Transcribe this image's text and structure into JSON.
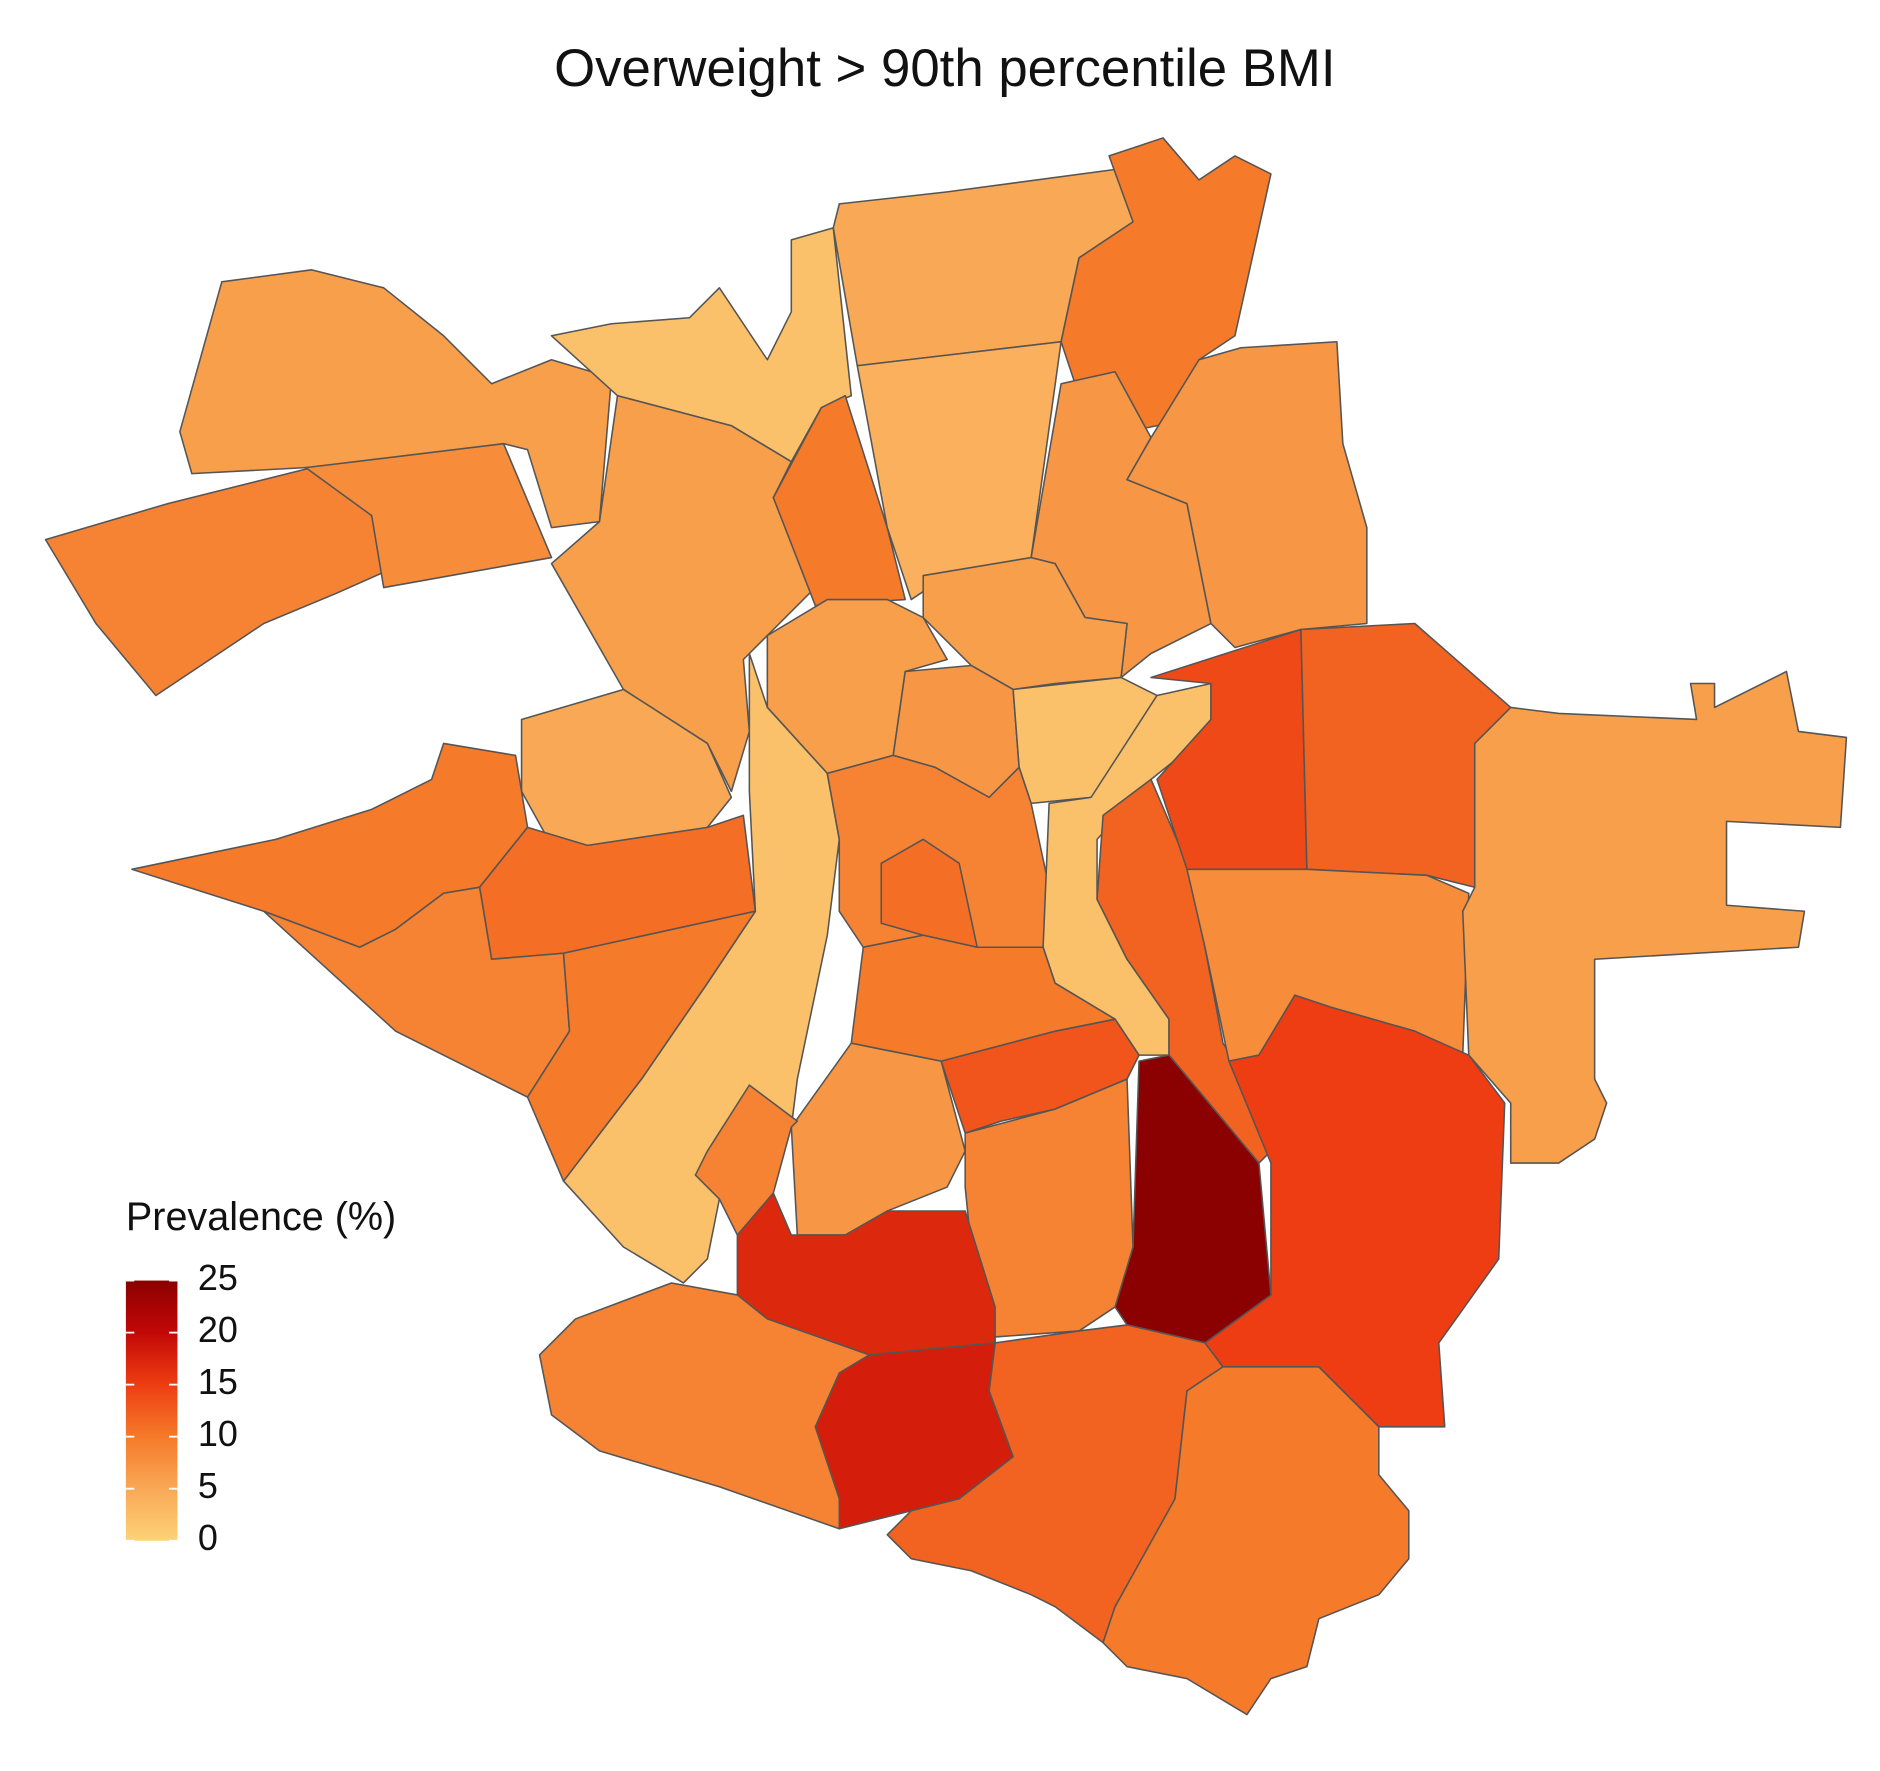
{
  "chart_data": {
    "type": "choropleth",
    "title": "Overweight > 90th percentile BMI",
    "legend_title": "Prevalence (%)",
    "colorbar": {
      "lim": [
        0,
        25
      ],
      "ticks": [
        0,
        5,
        10,
        15,
        20,
        25
      ],
      "colors": [
        "#fdd278",
        "#f9a855",
        "#f57a2a",
        "#ee3d12",
        "#c20806",
        "#8b0000"
      ]
    },
    "values": [
      6,
      9,
      8,
      2,
      6,
      10,
      5,
      4,
      10,
      7,
      7,
      6,
      6,
      7,
      2,
      5,
      2,
      10,
      11,
      9,
      10,
      9,
      11,
      2,
      12,
      14,
      12,
      8,
      6,
      15,
      25,
      7,
      13,
      9,
      10,
      17,
      18,
      12,
      10,
      9,
      9
    ]
  }
}
